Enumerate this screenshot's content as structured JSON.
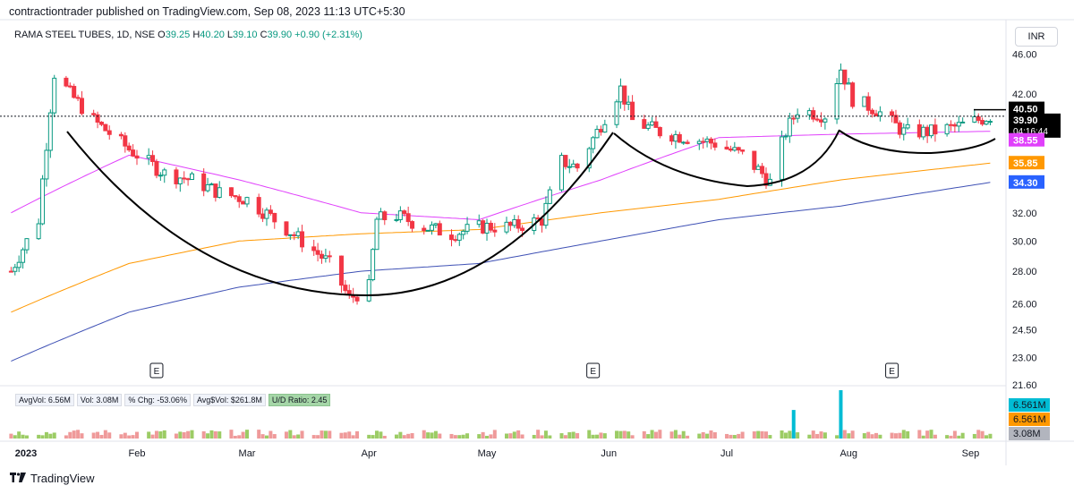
{
  "header": {
    "publisher_line": "contractiontrader published on TradingView.com, Sep 08, 2023 11:13 UTC+5:30"
  },
  "symbol": {
    "name": "RAMA STEEL TUBES, 1D, NSE",
    "open_label": "O",
    "open": "39.25",
    "high_label": "H",
    "high": "40.20",
    "low_label": "L",
    "low": "39.10",
    "close_label": "C",
    "close": "39.90",
    "change": "+0.90 (+2.31%)"
  },
  "currency": "INR",
  "stats": {
    "avgvol": "AvgVol: 6.56M",
    "vol": "Vol: 3.08M",
    "chg": "% Chg: -53.06%",
    "avgdollar": "Avg$Vol: $261.8M",
    "ud": "U/D Ratio: 2.45"
  },
  "earnings_marker": "E",
  "price_labels": {
    "resistance": "40.50",
    "last": "39.90",
    "countdown": "04:16:44",
    "ma_fast": "38.55",
    "ma_mid": "35.85",
    "ma_slow": "34.30",
    "vol_avg1": "6.561M",
    "vol_avg2": "6.561M",
    "vol_last": "3.08M"
  },
  "colors": {
    "up": "#089981",
    "down": "#f23645",
    "ma_fast": "#e040fb",
    "ma_mid": "#ff9800",
    "ma_slow": "#3f51b5",
    "vol_spike": "#00bcd4"
  },
  "footer": {
    "brand": "TradingView"
  },
  "chart_data": {
    "type": "candlestick",
    "y_ticks": [
      "46.00",
      "42.00",
      "40.50",
      "39.90",
      "38.55",
      "35.85",
      "34.30",
      "32.00",
      "30.00",
      "28.00",
      "26.00",
      "24.50",
      "23.00",
      "21.60"
    ],
    "x_ticks": [
      "2023",
      "Feb",
      "Mar",
      "Apr",
      "May",
      "Jun",
      "Jul",
      "Aug",
      "Sep"
    ],
    "ylim": [
      21.6,
      46.5
    ],
    "y_scale": "log",
    "ohlc_anchors": [
      {
        "date": "2023-01-02",
        "close": 28.0
      },
      {
        "date": "2023-01-09",
        "close": 31.5
      },
      {
        "date": "2023-01-11",
        "close": 37.5
      },
      {
        "date": "2023-01-13",
        "close": 44.0
      },
      {
        "date": "2023-01-17",
        "close": 42.0
      },
      {
        "date": "2023-01-23",
        "close": 39.5
      },
      {
        "date": "2023-02-01",
        "close": 37.0
      },
      {
        "date": "2023-02-10",
        "close": 35.0
      },
      {
        "date": "2023-02-17",
        "close": 34.5
      },
      {
        "date": "2023-02-24",
        "close": 33.5
      },
      {
        "date": "2023-03-03",
        "close": 33.0
      },
      {
        "date": "2023-03-10",
        "close": 31.5
      },
      {
        "date": "2023-03-17",
        "close": 30.0
      },
      {
        "date": "2023-03-24",
        "close": 28.5
      },
      {
        "date": "2023-03-29",
        "close": 26.3
      },
      {
        "date": "2023-04-03",
        "close": 27.0
      },
      {
        "date": "2023-04-05",
        "close": 31.5
      },
      {
        "date": "2023-04-10",
        "close": 31.8
      },
      {
        "date": "2023-04-17",
        "close": 31.0
      },
      {
        "date": "2023-04-24",
        "close": 30.5
      },
      {
        "date": "2023-05-02",
        "close": 31.0
      },
      {
        "date": "2023-05-10",
        "close": 31.0
      },
      {
        "date": "2023-05-17",
        "close": 31.5
      },
      {
        "date": "2023-05-22",
        "close": 36.0
      },
      {
        "date": "2023-05-26",
        "close": 35.5
      },
      {
        "date": "2023-05-31",
        "close": 38.5
      },
      {
        "date": "2023-06-06",
        "close": 42.5
      },
      {
        "date": "2023-06-09",
        "close": 39.5
      },
      {
        "date": "2023-06-16",
        "close": 38.5
      },
      {
        "date": "2023-06-23",
        "close": 38.0
      },
      {
        "date": "2023-06-30",
        "close": 37.5
      },
      {
        "date": "2023-07-07",
        "close": 36.5
      },
      {
        "date": "2023-07-12",
        "close": 35.0
      },
      {
        "date": "2023-07-14",
        "close": 34.3
      },
      {
        "date": "2023-07-18",
        "close": 38.5
      },
      {
        "date": "2023-07-21",
        "close": 40.5
      },
      {
        "date": "2023-07-28",
        "close": 40.0
      },
      {
        "date": "2023-08-01",
        "close": 44.5
      },
      {
        "date": "2023-08-04",
        "close": 41.5
      },
      {
        "date": "2023-08-10",
        "close": 40.5
      },
      {
        "date": "2023-08-17",
        "close": 38.5
      },
      {
        "date": "2023-08-24",
        "close": 38.5
      },
      {
        "date": "2023-08-31",
        "close": 39.0
      },
      {
        "date": "2023-09-08",
        "close": 39.9
      }
    ],
    "ma_fast_anchors": [
      {
        "date": "2023-01-02",
        "value": 32.0
      },
      {
        "date": "2023-02-01",
        "value": 36.5
      },
      {
        "date": "2023-03-01",
        "value": 34.5
      },
      {
        "date": "2023-04-01",
        "value": 32.0
      },
      {
        "date": "2023-05-01",
        "value": 31.5
      },
      {
        "date": "2023-06-01",
        "value": 34.5
      },
      {
        "date": "2023-07-01",
        "value": 38.0
      },
      {
        "date": "2023-08-01",
        "value": 38.3
      },
      {
        "date": "2023-09-08",
        "value": 38.55
      }
    ],
    "ma_mid_anchors": [
      {
        "date": "2023-01-02",
        "value": 25.5
      },
      {
        "date": "2023-02-01",
        "value": 28.5
      },
      {
        "date": "2023-03-01",
        "value": 30.0
      },
      {
        "date": "2023-04-01",
        "value": 30.5
      },
      {
        "date": "2023-05-01",
        "value": 30.8
      },
      {
        "date": "2023-06-01",
        "value": 32.0
      },
      {
        "date": "2023-07-01",
        "value": 33.0
      },
      {
        "date": "2023-08-01",
        "value": 34.5
      },
      {
        "date": "2023-09-08",
        "value": 35.85
      }
    ],
    "ma_slow_anchors": [
      {
        "date": "2023-01-02",
        "value": 22.8
      },
      {
        "date": "2023-02-01",
        "value": 25.5
      },
      {
        "date": "2023-03-01",
        "value": 27.0
      },
      {
        "date": "2023-04-01",
        "value": 28.0
      },
      {
        "date": "2023-05-01",
        "value": 28.5
      },
      {
        "date": "2023-06-01",
        "value": 30.0
      },
      {
        "date": "2023-07-01",
        "value": 31.5
      },
      {
        "date": "2023-08-01",
        "value": 32.5
      },
      {
        "date": "2023-09-08",
        "value": 34.3
      }
    ],
    "volume_spikes": [
      {
        "date": "2023-07-20",
        "value": 6.5
      },
      {
        "date": "2023-08-01",
        "value": 11.0
      }
    ],
    "pattern": "cup and handle",
    "earnings_dates": [
      "2023-02-08",
      "2023-05-30",
      "2023-08-14"
    ]
  }
}
